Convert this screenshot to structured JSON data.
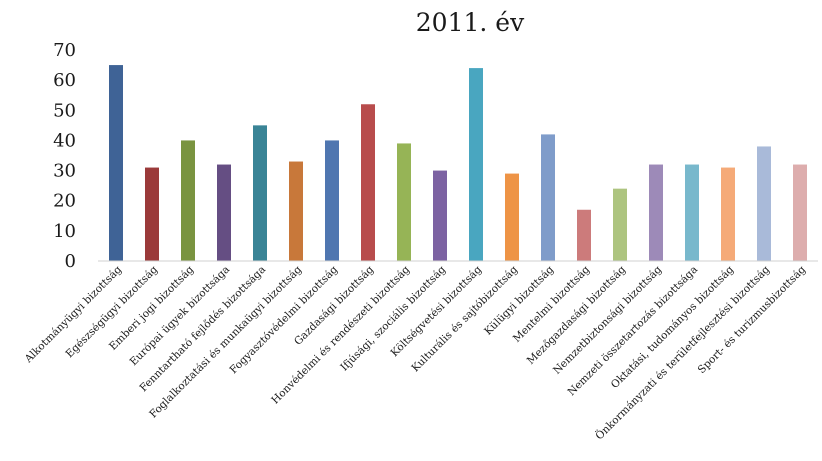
{
  "chart_data": {
    "type": "bar",
    "title": "2011. év",
    "xlabel": "",
    "ylabel": "",
    "ylim": [
      0,
      70
    ],
    "yticks": [
      0,
      10,
      20,
      30,
      40,
      50,
      60,
      70
    ],
    "grid": false,
    "legend": "none",
    "categories": [
      "Alkotmányügyi bizottság",
      "Egészségügyi bizottság",
      "Emberi jogi bizottság",
      "Európai ügyek bizottsága",
      "Fenntartható fejlődés bizottsága",
      "Foglalkoztatási és munkaügyi bizottság",
      "Fogyasztóvédelmi bizottság",
      "Gazdasági bizottság",
      "Honvédelmi és rendészeti bizottság",
      "Ifjúsági, szociális bizottság",
      "Költségvetési bizottság",
      "Kulturális és sajtóbizottság",
      "Külügyi bizottság",
      "Mentelmi bizottság",
      "Mezőgazdasági bizottság",
      "Nemzetbiztonsági bizottság",
      "Nemzeti összetartozás bizottsága",
      "Oktatási, tudományos bizottság",
      "Önkormányzati és területfejlesztési bizottság",
      "Sport- és turizmusbizottság"
    ],
    "values": [
      65,
      31,
      40,
      32,
      45,
      33,
      40,
      52,
      39,
      30,
      64,
      29,
      42,
      17,
      24,
      32,
      32,
      31,
      38,
      32
    ],
    "colors": [
      "#3f6396",
      "#9b3a3a",
      "#7a9440",
      "#654e83",
      "#3a8496",
      "#c8783a",
      "#4f76b0",
      "#b84c4c",
      "#96b456",
      "#7c62a2",
      "#49a6c0",
      "#ee9446",
      "#7f9cca",
      "#cc7b7b",
      "#adc47f",
      "#9d8ab8",
      "#78b8cc",
      "#f5aa78",
      "#a9bad9",
      "#ddadad"
    ]
  }
}
